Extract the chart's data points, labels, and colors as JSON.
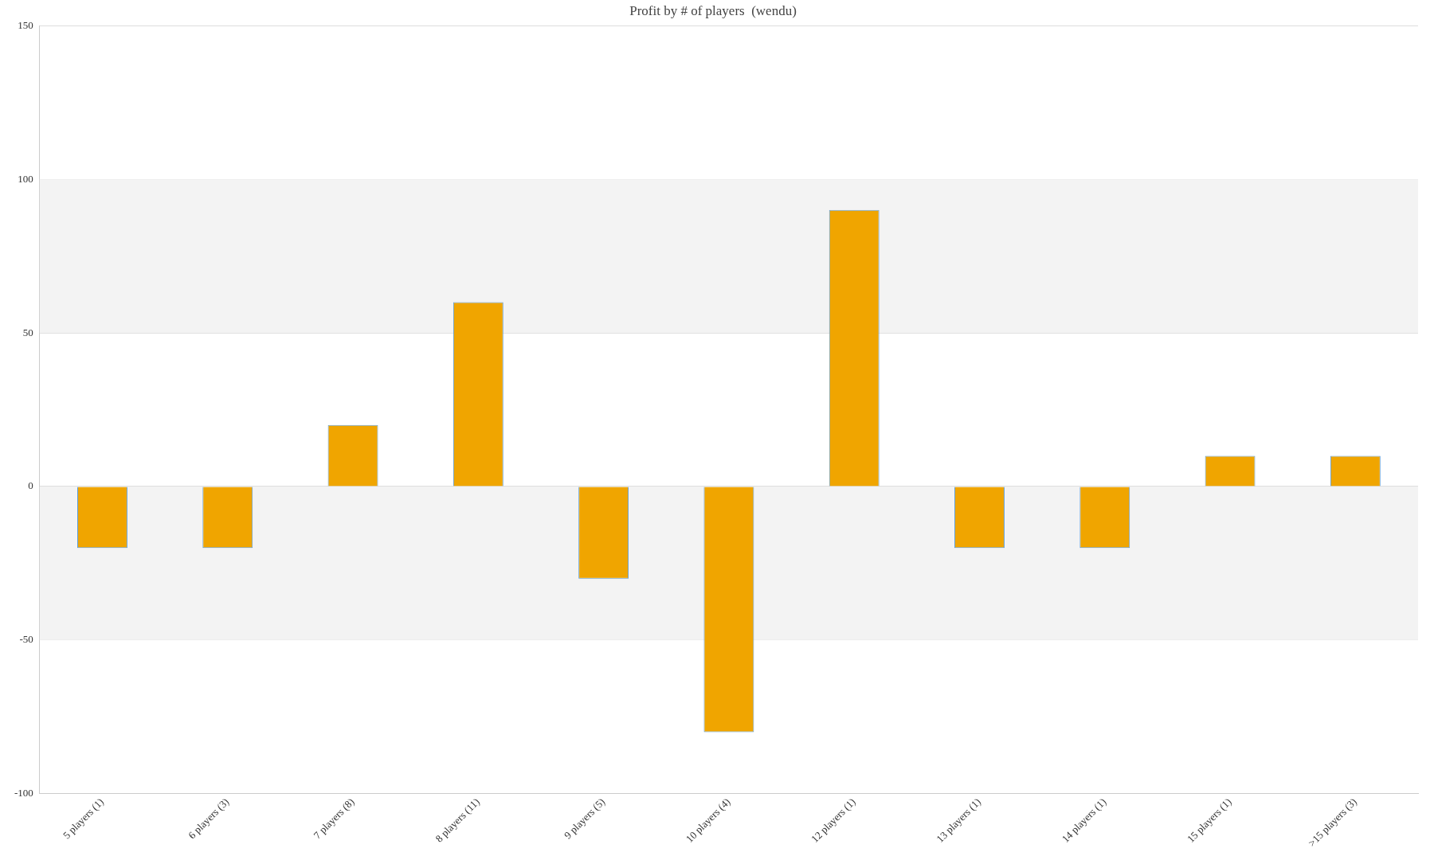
{
  "chart_data": {
    "type": "bar",
    "title": "Profit by # of players  (wendu)",
    "categories": [
      "5 players (1)",
      "6 players (3)",
      "7 players (8)",
      "8 players (11)",
      "9 players (5)",
      "10 players (4)",
      "12 players (1)",
      "13 players (1)",
      "14 players (1)",
      "15 players (1)",
      ">15 players (3)"
    ],
    "values": [
      -20,
      -20,
      20,
      60,
      -30,
      -80,
      90,
      -20,
      -20,
      10,
      10
    ],
    "color": "#f0a500",
    "ylim": [
      -100,
      150
    ],
    "yticks": [
      -100,
      -50,
      0,
      50,
      100,
      150
    ],
    "bands": [
      {
        "axis": "y",
        "from": 50,
        "to": 100,
        "color": "#f3f3f3"
      },
      {
        "axis": "y",
        "from": -50,
        "to": 0,
        "color": "#f3f3f3"
      }
    ],
    "grid": "y",
    "legend": false
  }
}
